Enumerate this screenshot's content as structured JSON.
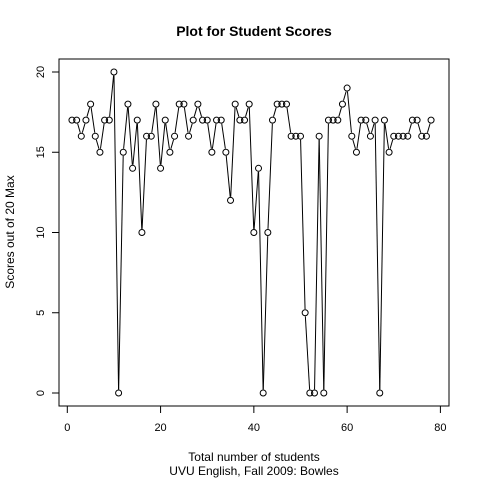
{
  "chart_data": {
    "type": "line",
    "title": "Plot for Student Scores",
    "xlabel": "Total number of students",
    "subtitle": "UVU English, Fall 2009: Bowles",
    "ylabel": "Scores out of 20 Max",
    "xlim": [
      0,
      80
    ],
    "ylim": [
      0,
      20
    ],
    "x_ticks": [
      0,
      20,
      40,
      60,
      80
    ],
    "y_ticks": [
      0,
      5,
      10,
      15,
      20
    ],
    "x_tick_labels": [
      "0",
      "20",
      "40",
      "60",
      "80"
    ],
    "y_tick_labels": [
      "0",
      "5",
      "10",
      "15",
      "20"
    ],
    "grid": false,
    "series": [
      {
        "style": "both",
        "marker": "open-circle",
        "color": "#000000",
        "x": [
          1,
          2,
          3,
          4,
          5,
          6,
          7,
          8,
          9,
          10,
          11,
          12,
          13,
          14,
          15,
          16,
          17,
          18,
          19,
          20,
          21,
          22,
          23,
          24,
          25,
          26,
          27,
          28,
          29,
          30,
          31,
          32,
          33,
          34,
          35,
          36,
          37,
          38,
          39,
          40,
          41,
          42,
          43,
          44,
          45,
          46,
          47,
          48,
          49,
          50,
          51,
          52,
          53,
          54,
          55,
          56,
          57,
          58,
          59,
          60,
          61,
          62,
          63,
          64,
          65,
          66,
          67,
          68,
          69,
          70,
          71,
          72,
          73,
          74,
          75,
          76,
          77,
          78
        ],
        "values": [
          17,
          17,
          16,
          17,
          18,
          16,
          15,
          17,
          17,
          20,
          0,
          15,
          18,
          14,
          17,
          10,
          16,
          16,
          18,
          14,
          17,
          15,
          16,
          18,
          18,
          16,
          17,
          18,
          17,
          17,
          15,
          17,
          17,
          15,
          12,
          18,
          17,
          17,
          18,
          10,
          14,
          0,
          10,
          17,
          18,
          18,
          18,
          16,
          16,
          16,
          5,
          0,
          0,
          16,
          0,
          17,
          17,
          17,
          18,
          19,
          16,
          15,
          17,
          17,
          16,
          17,
          0,
          17,
          15,
          16,
          16,
          16,
          16,
          17,
          17,
          16,
          16,
          17
        ]
      }
    ]
  }
}
